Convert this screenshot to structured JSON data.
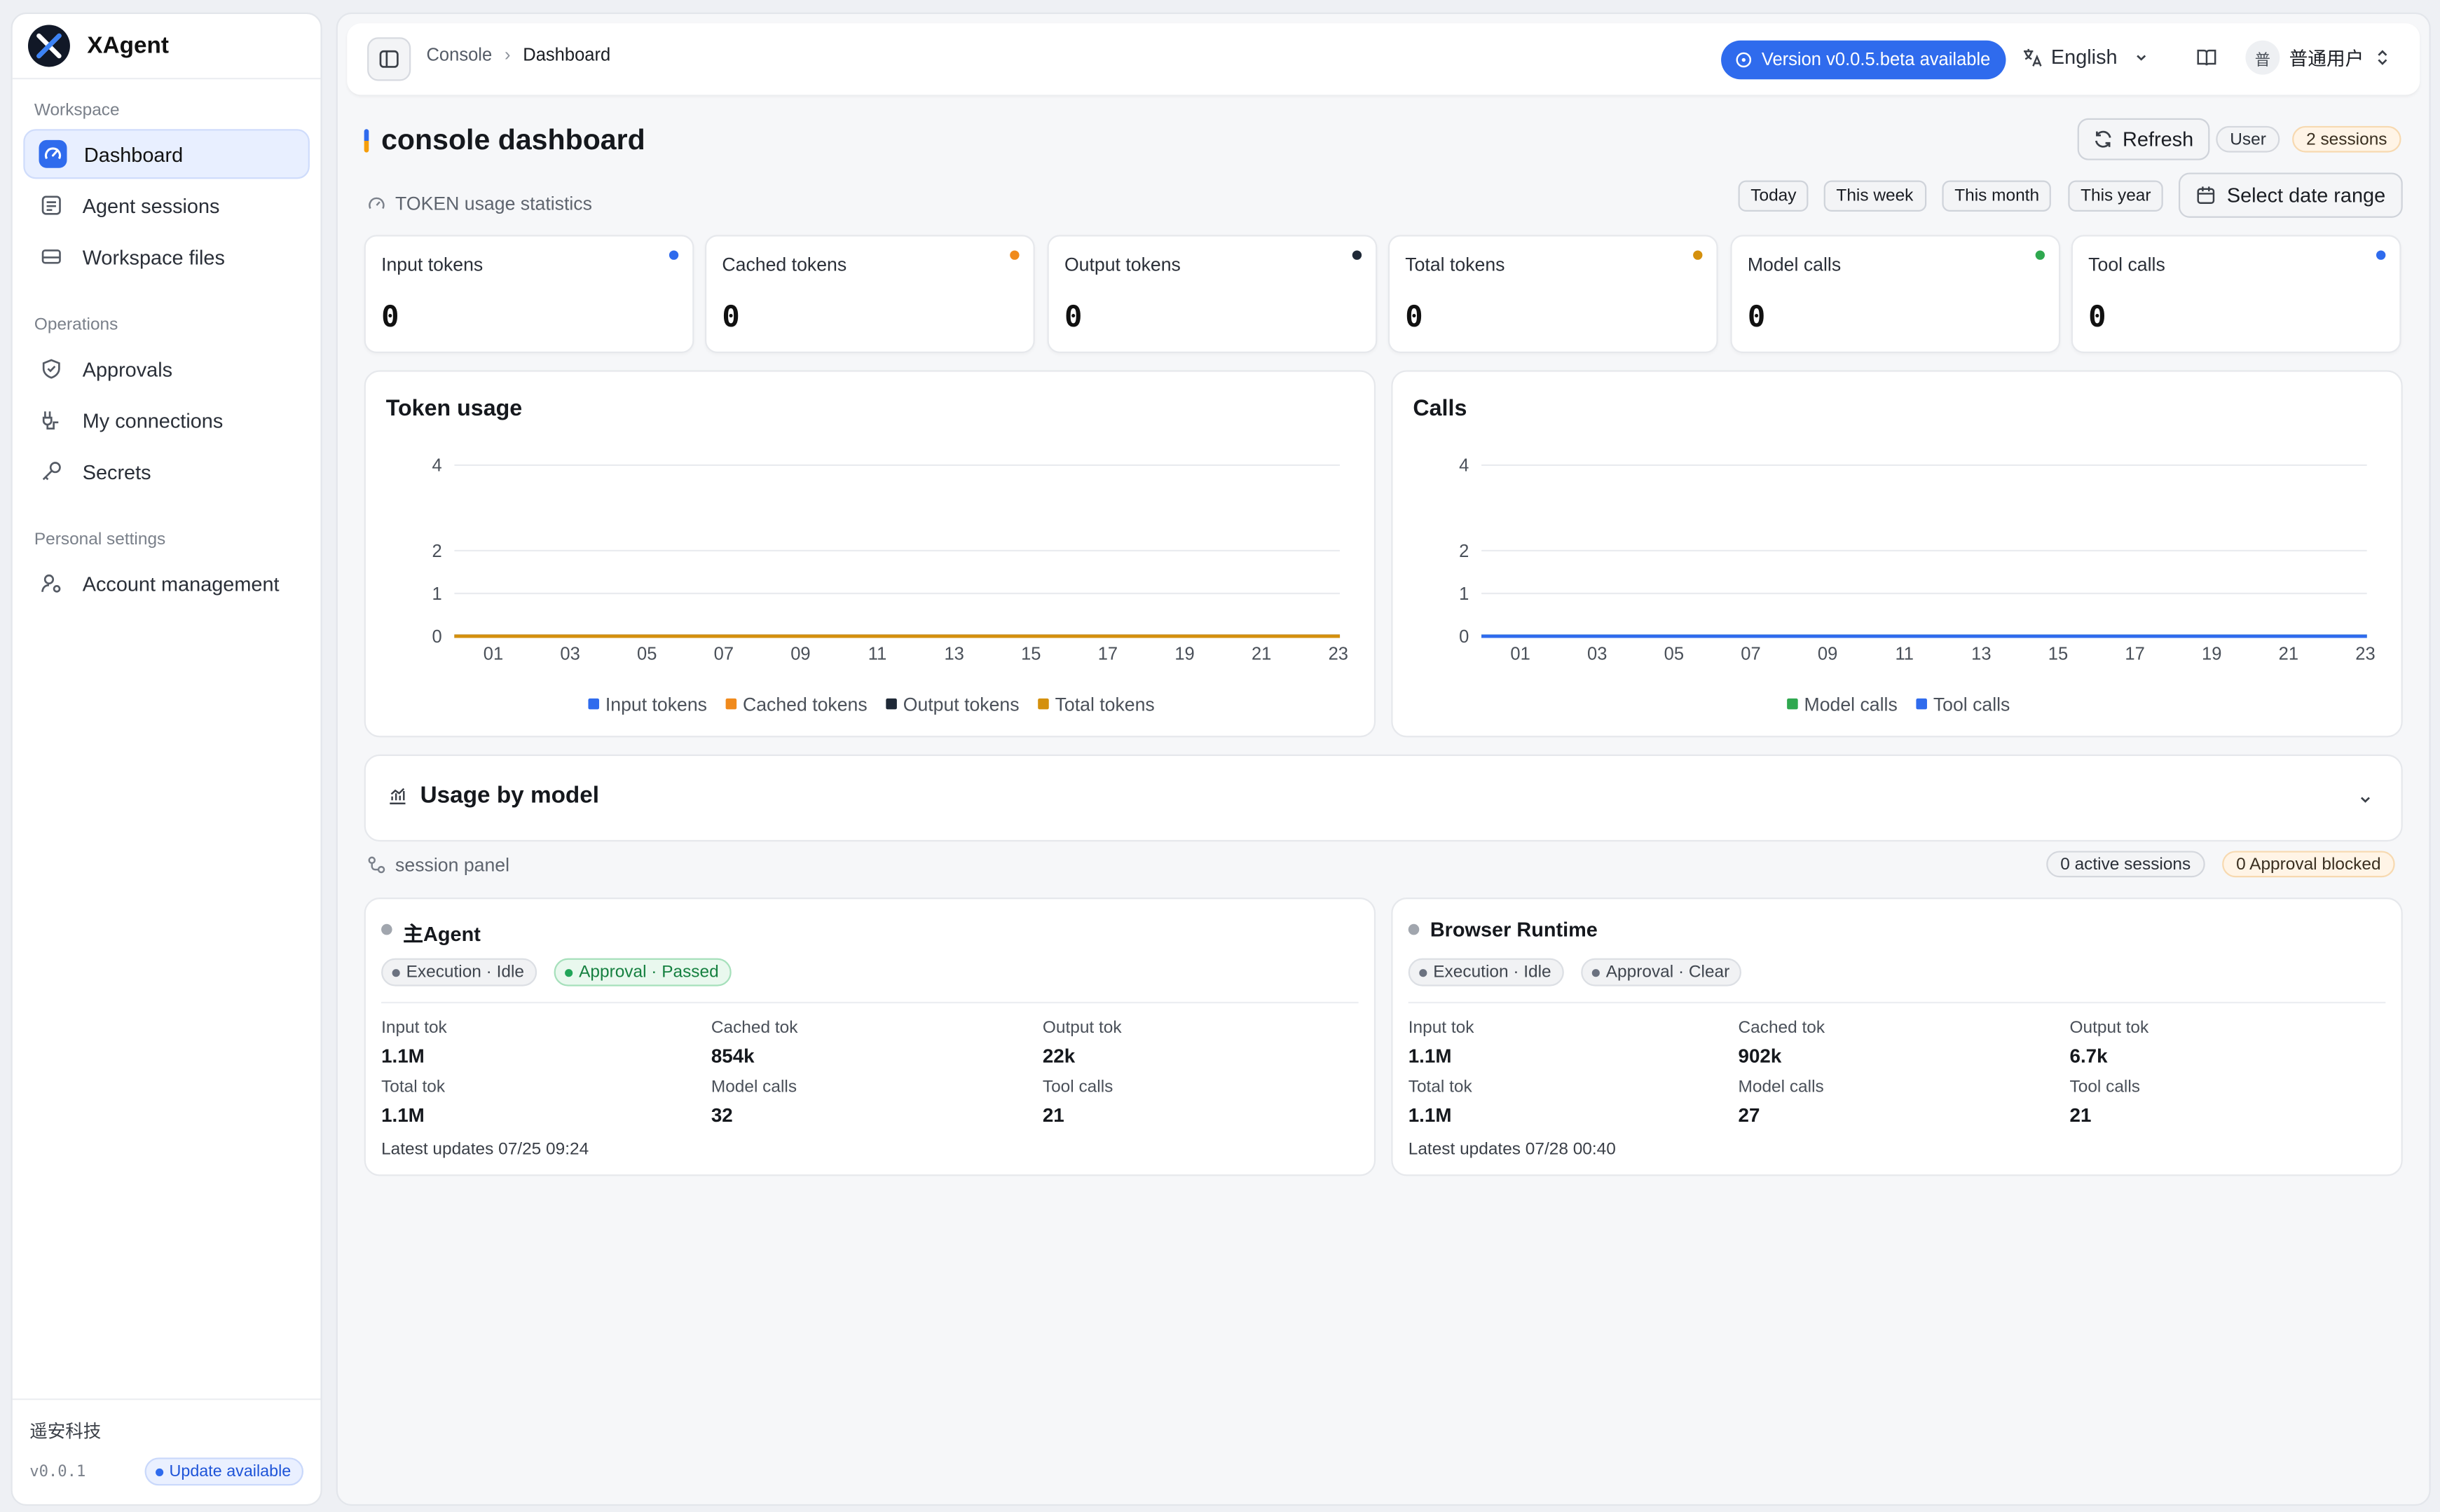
{
  "app": {
    "name": "XAgent"
  },
  "sidebar": {
    "groups": [
      {
        "label": "Workspace",
        "items": [
          {
            "label": "Dashboard",
            "icon": "gauge-icon",
            "active": true
          },
          {
            "label": "Agent sessions",
            "icon": "chat-list-icon"
          },
          {
            "label": "Workspace files",
            "icon": "drive-icon"
          }
        ]
      },
      {
        "label": "Operations",
        "items": [
          {
            "label": "Approvals",
            "icon": "shield-check-icon"
          },
          {
            "label": "My connections",
            "icon": "plug-icon"
          },
          {
            "label": "Secrets",
            "icon": "key-icon"
          }
        ]
      },
      {
        "label": "Personal settings",
        "items": [
          {
            "label": "Account management",
            "icon": "user-gear-icon"
          }
        ]
      }
    ],
    "footer": {
      "org": "遥安科技",
      "version": "v0.0.1",
      "update": "Update available"
    }
  },
  "topbar": {
    "breadcrumb": [
      "Console",
      "Dashboard"
    ],
    "version_pill": "Version v0.0.5.beta available",
    "language": "English",
    "user_name": "普通用户",
    "user_initial": "普"
  },
  "page": {
    "title": "console dashboard",
    "refresh": "Refresh",
    "role_chip": "User",
    "sessions_chip": "2 sessions",
    "stats_heading": "TOKEN usage statistics",
    "ranges": [
      "Today",
      "This week",
      "This month",
      "This year"
    ],
    "date_range": "Select date range"
  },
  "stats": [
    {
      "label": "Input tokens",
      "value": "0",
      "color": "#2f6bed"
    },
    {
      "label": "Cached tokens",
      "value": "0",
      "color": "#f08a1c"
    },
    {
      "label": "Output tokens",
      "value": "0",
      "color": "#1f2937"
    },
    {
      "label": "Total tokens",
      "value": "0",
      "color": "#d4900d"
    },
    {
      "label": "Model calls",
      "value": "0",
      "color": "#2fa84f"
    },
    {
      "label": "Tool calls",
      "value": "0",
      "color": "#2f6bed"
    }
  ],
  "chart_data": [
    {
      "type": "line",
      "title": "Token usage",
      "x": [
        "01",
        "03",
        "05",
        "07",
        "09",
        "11",
        "13",
        "15",
        "17",
        "19",
        "21",
        "23"
      ],
      "y_ticks": [
        0,
        1,
        2,
        4
      ],
      "ylim": [
        0,
        4
      ],
      "series": [
        {
          "name": "Input tokens",
          "color": "#2f6bed",
          "values": [
            0,
            0,
            0,
            0,
            0,
            0,
            0,
            0,
            0,
            0,
            0,
            0
          ]
        },
        {
          "name": "Cached tokens",
          "color": "#f08a1c",
          "values": [
            0,
            0,
            0,
            0,
            0,
            0,
            0,
            0,
            0,
            0,
            0,
            0
          ]
        },
        {
          "name": "Output tokens",
          "color": "#1f2937",
          "values": [
            0,
            0,
            0,
            0,
            0,
            0,
            0,
            0,
            0,
            0,
            0,
            0
          ]
        },
        {
          "name": "Total tokens",
          "color": "#d4900d",
          "values": [
            0,
            0,
            0,
            0,
            0,
            0,
            0,
            0,
            0,
            0,
            0,
            0
          ]
        }
      ],
      "legend": "bottom"
    },
    {
      "type": "line",
      "title": "Calls",
      "x": [
        "01",
        "03",
        "05",
        "07",
        "09",
        "11",
        "13",
        "15",
        "17",
        "19",
        "21",
        "23"
      ],
      "y_ticks": [
        0,
        1,
        2,
        4
      ],
      "ylim": [
        0,
        4
      ],
      "series": [
        {
          "name": "Model calls",
          "color": "#2fa84f",
          "values": [
            0,
            0,
            0,
            0,
            0,
            0,
            0,
            0,
            0,
            0,
            0,
            0
          ]
        },
        {
          "name": "Tool calls",
          "color": "#2f6bed",
          "values": [
            0,
            0,
            0,
            0,
            0,
            0,
            0,
            0,
            0,
            0,
            0,
            0
          ]
        }
      ],
      "legend": "bottom"
    }
  ],
  "usage_by_model": {
    "title": "Usage by model"
  },
  "session_panel": {
    "heading": "session panel",
    "active_chip": "0 active sessions",
    "blocked_chip": "0 Approval blocked",
    "sessions": [
      {
        "name": "主Agent",
        "exec_tag": "Execution · Idle",
        "approval_tag": "Approval · Passed",
        "approval_color": "#22a559",
        "metrics": [
          {
            "k": "Input tok",
            "v": "1.1M"
          },
          {
            "k": "Cached tok",
            "v": "854k"
          },
          {
            "k": "Output tok",
            "v": "22k"
          },
          {
            "k": "Total tok",
            "v": "1.1M"
          },
          {
            "k": "Model calls",
            "v": "32"
          },
          {
            "k": "Tool calls",
            "v": "21"
          }
        ],
        "latest": "Latest updates 07/25 09:24"
      },
      {
        "name": "Browser Runtime",
        "exec_tag": "Execution · Idle",
        "approval_tag": "Approval · Clear",
        "approval_color": "#6b7280",
        "metrics": [
          {
            "k": "Input tok",
            "v": "1.1M"
          },
          {
            "k": "Cached tok",
            "v": "902k"
          },
          {
            "k": "Output tok",
            "v": "6.7k"
          },
          {
            "k": "Total tok",
            "v": "1.1M"
          },
          {
            "k": "Model calls",
            "v": "27"
          },
          {
            "k": "Tool calls",
            "v": "21"
          }
        ],
        "latest": "Latest updates 07/28 00:40"
      }
    ]
  }
}
